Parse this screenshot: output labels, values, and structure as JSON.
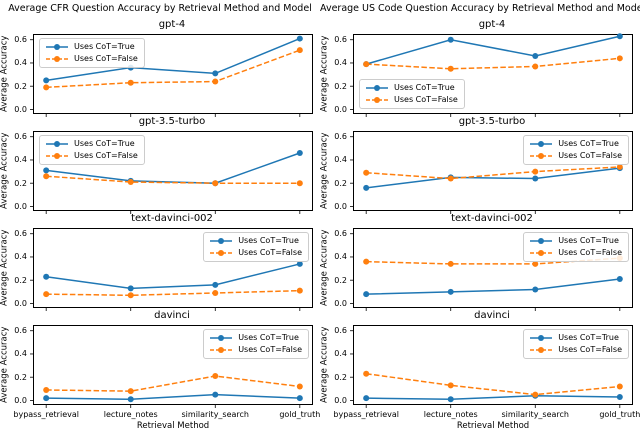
{
  "colors": {
    "cot_true": "#1f77b4",
    "cot_false": "#ff7f0e",
    "axis": "#000000",
    "legend_border": "#cccccc"
  },
  "legend": {
    "true_label": "Uses CoT=True",
    "false_label": "Uses CoT=False"
  },
  "x_axis": {
    "label": "Retrieval Method",
    "categories": [
      "bypass_retrieval",
      "lecture_notes",
      "similarity_search",
      "gold_truth"
    ]
  },
  "y_axis": {
    "label": "Average Accuracy",
    "ticks": [
      0.0,
      0.2,
      0.4,
      0.6
    ],
    "limits": [
      -0.035,
      0.645
    ]
  },
  "chart_data": [
    {
      "type": "line",
      "title": "Average CFR Question Accuracy by Retrieval Method and Model",
      "xlabel": "Retrieval Method",
      "ylabel": "Average Accuracy",
      "categories": [
        "bypass_retrieval",
        "lecture_notes",
        "similarity_search",
        "gold_truth"
      ],
      "subplots": [
        {
          "model": "gpt-4",
          "legend_pos": "upper-left",
          "series": [
            {
              "name": "Uses CoT=True",
              "values": [
                0.25,
                0.36,
                0.31,
                0.61
              ]
            },
            {
              "name": "Uses CoT=False",
              "values": [
                0.19,
                0.23,
                0.24,
                0.51
              ]
            }
          ]
        },
        {
          "model": "gpt-3.5-turbo",
          "legend_pos": "upper-left",
          "series": [
            {
              "name": "Uses CoT=True",
              "values": [
                0.31,
                0.22,
                0.2,
                0.46
              ]
            },
            {
              "name": "Uses CoT=False",
              "values": [
                0.26,
                0.21,
                0.2,
                0.2
              ]
            }
          ]
        },
        {
          "model": "text-davinci-002",
          "legend_pos": "upper-right",
          "series": [
            {
              "name": "Uses CoT=True",
              "values": [
                0.23,
                0.13,
                0.16,
                0.34
              ]
            },
            {
              "name": "Uses CoT=False",
              "values": [
                0.08,
                0.07,
                0.09,
                0.11
              ]
            }
          ]
        },
        {
          "model": "davinci",
          "legend_pos": "upper-right",
          "series": [
            {
              "name": "Uses CoT=True",
              "values": [
                0.02,
                0.01,
                0.05,
                0.02
              ]
            },
            {
              "name": "Uses CoT=False",
              "values": [
                0.09,
                0.08,
                0.21,
                0.12
              ]
            }
          ]
        }
      ]
    },
    {
      "type": "line",
      "title": "Average US Code Question Accuracy by Retrieval Method and Model",
      "xlabel": "Retrieval Method",
      "ylabel": "Average Accuracy",
      "categories": [
        "bypass_retrieval",
        "lecture_notes",
        "similarity_search",
        "gold_truth"
      ],
      "subplots": [
        {
          "model": "gpt-4",
          "legend_pos": "lower-left",
          "series": [
            {
              "name": "Uses CoT=True",
              "values": [
                0.39,
                0.6,
                0.46,
                0.63
              ]
            },
            {
              "name": "Uses CoT=False",
              "values": [
                0.39,
                0.35,
                0.37,
                0.44
              ]
            }
          ]
        },
        {
          "model": "gpt-3.5-turbo",
          "legend_pos": "upper-right",
          "series": [
            {
              "name": "Uses CoT=True",
              "values": [
                0.16,
                0.25,
                0.24,
                0.33
              ]
            },
            {
              "name": "Uses CoT=False",
              "values": [
                0.29,
                0.24,
                0.3,
                0.34
              ]
            }
          ]
        },
        {
          "model": "text-davinci-002",
          "legend_pos": "upper-right",
          "series": [
            {
              "name": "Uses CoT=True",
              "values": [
                0.08,
                0.1,
                0.12,
                0.21
              ]
            },
            {
              "name": "Uses CoT=False",
              "values": [
                0.36,
                0.34,
                0.34,
                0.39
              ]
            }
          ]
        },
        {
          "model": "davinci",
          "legend_pos": "upper-right",
          "series": [
            {
              "name": "Uses CoT=True",
              "values": [
                0.02,
                0.01,
                0.04,
                0.03
              ]
            },
            {
              "name": "Uses CoT=False",
              "values": [
                0.23,
                0.13,
                0.05,
                0.12
              ]
            }
          ]
        }
      ]
    }
  ]
}
